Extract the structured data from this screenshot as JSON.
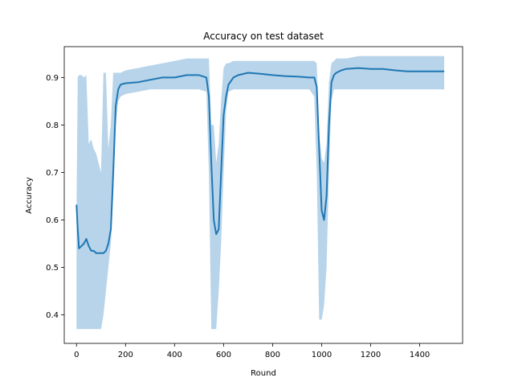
{
  "chart_data": {
    "type": "line",
    "title": "Accuracy on test dataset",
    "xlabel": "Round",
    "ylabel": "Accuracy",
    "xlim": [
      -50,
      1575
    ],
    "ylim": [
      0.34,
      0.965
    ],
    "x_ticks": [
      0,
      200,
      400,
      600,
      800,
      1000,
      1200,
      1400
    ],
    "y_ticks": [
      0.4,
      0.5,
      0.6,
      0.7,
      0.8,
      0.9
    ],
    "x_tick_labels": [
      "0",
      "200",
      "400",
      "600",
      "800",
      "1000",
      "1200",
      "1400"
    ],
    "y_tick_labels": [
      "0.4",
      "0.5",
      "0.6",
      "0.7",
      "0.8",
      "0.9"
    ],
    "grid": false,
    "colors": {
      "line": "#1f77b4",
      "band": "#b7d4ea"
    },
    "series": [
      {
        "x": [
          0,
          5,
          10,
          20,
          30,
          40,
          50,
          60,
          70,
          80,
          90,
          100,
          110,
          120,
          130,
          140,
          150,
          160,
          170,
          180,
          200,
          250,
          300,
          350,
          400,
          450,
          500,
          530,
          540,
          550,
          560,
          570,
          580,
          590,
          600,
          610,
          620,
          640,
          660,
          700,
          750,
          800,
          850,
          900,
          950,
          970,
          980,
          990,
          1000,
          1010,
          1020,
          1030,
          1040,
          1050,
          1060,
          1080,
          1100,
          1150,
          1200,
          1250,
          1300,
          1350,
          1400,
          1450,
          1500
        ],
        "y": [
          0.632,
          0.58,
          0.54,
          0.545,
          0.55,
          0.56,
          0.545,
          0.535,
          0.535,
          0.53,
          0.53,
          0.53,
          0.53,
          0.535,
          0.55,
          0.58,
          0.7,
          0.84,
          0.875,
          0.885,
          0.888,
          0.89,
          0.895,
          0.9,
          0.9,
          0.905,
          0.905,
          0.9,
          0.86,
          0.72,
          0.6,
          0.57,
          0.58,
          0.7,
          0.82,
          0.86,
          0.885,
          0.9,
          0.905,
          0.91,
          0.908,
          0.905,
          0.903,
          0.902,
          0.9,
          0.9,
          0.88,
          0.75,
          0.62,
          0.6,
          0.65,
          0.8,
          0.89,
          0.905,
          0.91,
          0.915,
          0.918,
          0.92,
          0.918,
          0.918,
          0.915,
          0.913,
          0.913,
          0.913,
          0.913
        ],
        "lower": [
          0.37,
          0.37,
          0.37,
          0.37,
          0.37,
          0.37,
          0.37,
          0.37,
          0.37,
          0.37,
          0.37,
          0.37,
          0.4,
          0.45,
          0.5,
          0.55,
          0.65,
          0.8,
          0.85,
          0.86,
          0.865,
          0.87,
          0.875,
          0.875,
          0.875,
          0.875,
          0.875,
          0.87,
          0.7,
          0.37,
          0.37,
          0.37,
          0.45,
          0.55,
          0.7,
          0.83,
          0.87,
          0.875,
          0.875,
          0.875,
          0.875,
          0.875,
          0.875,
          0.875,
          0.875,
          0.86,
          0.7,
          0.39,
          0.39,
          0.42,
          0.5,
          0.7,
          0.85,
          0.875,
          0.875,
          0.875,
          0.875,
          0.875,
          0.875,
          0.875,
          0.875,
          0.875,
          0.875,
          0.875,
          0.875
        ],
        "upper": [
          0.632,
          0.9,
          0.905,
          0.905,
          0.9,
          0.905,
          0.76,
          0.77,
          0.75,
          0.74,
          0.72,
          0.7,
          0.91,
          0.91,
          0.75,
          0.8,
          0.91,
          0.91,
          0.91,
          0.91,
          0.915,
          0.92,
          0.925,
          0.93,
          0.935,
          0.94,
          0.94,
          0.94,
          0.94,
          0.8,
          0.8,
          0.72,
          0.76,
          0.85,
          0.92,
          0.93,
          0.93,
          0.935,
          0.935,
          0.935,
          0.935,
          0.935,
          0.935,
          0.935,
          0.935,
          0.935,
          0.93,
          0.78,
          0.73,
          0.72,
          0.76,
          0.89,
          0.93,
          0.935,
          0.94,
          0.94,
          0.94,
          0.945,
          0.945,
          0.945,
          0.945,
          0.945,
          0.945,
          0.945,
          0.945
        ]
      }
    ]
  }
}
